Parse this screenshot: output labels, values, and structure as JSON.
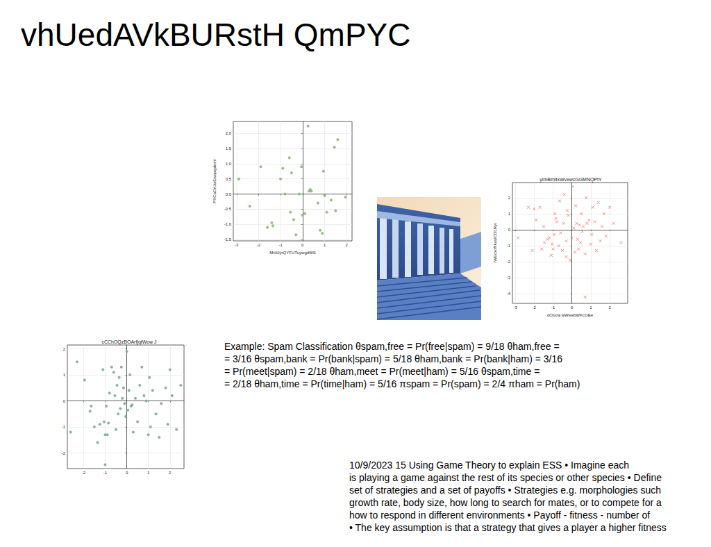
{
  "title": "vhUedAVkBURstH QmPYC",
  "chart_data": [
    {
      "type": "scatter",
      "x_label": "MrHJyrQYFUTuywgdWS",
      "y_label": "PXCaOrUwEwqwgdnml",
      "color": "#86b86f",
      "marker": "o",
      "grid": true,
      "x": [
        -2.9,
        -2.4,
        -1.9,
        -1.6,
        -1.4,
        -1.35,
        -1.0,
        -0.9,
        -0.8,
        -0.6,
        -0.55,
        -0.5,
        -0.4,
        -0.3,
        -0.15,
        -0.05,
        0.0,
        0.1,
        0.25,
        0.3,
        0.35,
        0.4,
        0.7,
        0.8,
        0.9,
        0.95,
        1.0,
        1.1,
        1.3,
        1.45,
        1.6,
        1.5,
        1.95
      ],
      "values": [
        0.5,
        -0.4,
        0.9,
        -1.1,
        -0.95,
        -1.05,
        0.5,
        0.85,
        0.0,
        1.2,
        -0.6,
        0.7,
        -0.85,
        -1.35,
        0.0,
        0.9,
        -0.7,
        -0.65,
        2.25,
        0.1,
        0.15,
        0.1,
        -0.3,
        -1.2,
        -1.3,
        0.75,
        -0.05,
        -0.6,
        -0.2,
        1.55,
        1.8,
        -0.55,
        -0.1
      ],
      "xlim": [
        -3.15,
        2.25
      ],
      "ylim": [
        -1.55,
        2.4
      ],
      "xticks": [
        -3,
        -2,
        -1,
        0,
        1,
        2
      ],
      "yticks": [
        {
          "value": -1.5,
          "label": "-1.5"
        },
        {
          "value": -1,
          "label": "-1.0"
        },
        {
          "value": -0.5,
          "label": "-0.5"
        },
        {
          "value": 0,
          "label": "0.0"
        },
        {
          "value": 0.5,
          "label": "0.5"
        },
        {
          "value": 1,
          "label": "1.0"
        },
        {
          "value": 1.5,
          "label": "1.5"
        },
        {
          "value": 2,
          "label": "2.0"
        }
      ]
    },
    {
      "type": "scatter",
      "title": "yImBmitxWvxwcGGMNQPtY",
      "x_label": "dOGza wWwsbWKcOEe",
      "y_label": "rWEcxnNkoyICDLRyt",
      "color": "#e8786f",
      "marker": "x",
      "grid": true,
      "x": [
        -2.85,
        -2.3,
        -2.1,
        -2.0,
        -1.9,
        -1.7,
        -1.6,
        -1.5,
        -1.45,
        -1.3,
        -1.2,
        -1.1,
        -1.05,
        -1.0,
        -0.95,
        -0.9,
        -0.85,
        -0.8,
        -0.7,
        -0.65,
        -0.6,
        -0.5,
        -0.45,
        -0.4,
        -0.3,
        -0.25,
        -0.2,
        -0.1,
        0.0,
        0.05,
        0.1,
        0.15,
        0.2,
        0.25,
        0.3,
        0.35,
        0.4,
        0.45,
        0.5,
        0.55,
        0.6,
        0.7,
        0.75,
        0.8,
        0.9,
        1.0,
        1.05,
        1.1,
        1.2,
        1.3,
        1.4,
        1.5,
        1.6,
        1.7,
        1.8,
        2.0,
        2.2,
        2.6,
        0.7,
        -0.3
      ],
      "values": [
        -0.5,
        1.4,
        -1.3,
        1.3,
        0.6,
        1.4,
        -1.2,
        0.2,
        -0.8,
        -0.6,
        -0.5,
        -1.6,
        -0.9,
        -1.2,
        -0.3,
        1.0,
        0.7,
        0.5,
        -1.0,
        1.8,
        -0.2,
        -1.3,
        0.4,
        2.2,
        -0.7,
        1.2,
        0.9,
        -1.9,
        -0.5,
        2.7,
        0.1,
        -1.4,
        1.5,
        0.4,
        -0.6,
        -1.2,
        0.3,
        -0.8,
        1.0,
        -0.1,
        0.2,
        -1.5,
        2.0,
        0.4,
        0.6,
        -0.9,
        -0.3,
        1.4,
        0.5,
        -1.3,
        1.7,
        -0.7,
        0.2,
        1.0,
        -0.4,
        1.4,
        0.4,
        -0.8,
        -4.2,
        -1.7
      ],
      "xlim": [
        -3.15,
        2.95
      ],
      "ylim": [
        -4.6,
        2.95
      ],
      "xticks": [
        -3,
        -2,
        -1,
        0,
        1,
        2
      ],
      "yticks": [
        -4,
        -3,
        -2,
        -1,
        0,
        1,
        2
      ]
    },
    {
      "type": "scatter",
      "title": "cCChOQzBOArfjqtWow J",
      "color": "#7aa99e",
      "marker": "o",
      "grid": true,
      "x": [
        -2.6,
        -2.3,
        -1.95,
        -1.7,
        -1.65,
        -1.5,
        -1.35,
        -1.25,
        -1.1,
        -1.05,
        -1.0,
        -0.95,
        -0.9,
        -0.85,
        -0.8,
        -0.7,
        -0.6,
        -0.55,
        -0.5,
        -0.45,
        -0.4,
        -0.35,
        -0.3,
        -0.25,
        -0.2,
        -0.15,
        -0.1,
        -0.05,
        0.0,
        0.05,
        0.1,
        0.15,
        0.2,
        0.25,
        0.3,
        0.4,
        0.5,
        0.6,
        0.7,
        0.8,
        0.9,
        1.0,
        1.05,
        1.1,
        1.2,
        1.35,
        1.5,
        1.6,
        1.8,
        1.9,
        2.0,
        2.1,
        2.3,
        2.5,
        -1.0
      ],
      "values": [
        -1.2,
        1.5,
        0.8,
        -0.4,
        -0.2,
        -1.0,
        -1.6,
        -0.9,
        1.2,
        -0.8,
        -2.45,
        -0.2,
        -1.3,
        -0.85,
        0.3,
        1.3,
        1.1,
        0.2,
        -1.1,
        0.6,
        -0.5,
        0.9,
        -0.3,
        1.3,
        0.1,
        0.5,
        -0.1,
        -0.6,
        1.9,
        -0.35,
        0.4,
        1.0,
        -0.2,
        -0.15,
        -1.2,
        0.1,
        -0.8,
        0.6,
        1.3,
        0.2,
        0.0,
        -1.3,
        0.9,
        -1.0,
        0.4,
        -0.5,
        -1.4,
        -0.1,
        0.5,
        -0.9,
        1.2,
        0.2,
        -1.1,
        0.6,
        -1.3
      ],
      "xlim": [
        -2.75,
        2.65
      ],
      "ylim": [
        -2.6,
        2.15
      ],
      "xticks": [
        -2,
        -1,
        0,
        1,
        2
      ],
      "yticks": [
        -2,
        -1,
        0,
        1,
        2
      ]
    }
  ],
  "text_blocks": [
    [
      "Example: Spam Classification θspam,free = Pr(free|spam) = 9/18 θham,free =",
      "= 3/16 θspam,bank = Pr(bank|spam) = 5/18 θham,bank = Pr(bank|ham) = 3/16",
      "= Pr(meet|spam) = 2/18 θham,meet = Pr(meet|ham) = 5/16 θspam,time =",
      "= 2/18 θham,time = Pr(time|ham) = 5/16 πspam = Pr(spam) = 2/4 πham = Pr(ham)"
    ],
    [
      "10/9/2023 15 Using Game Theory to explain ESS • Imagine each",
      "is playing a game against the rest of its species or other species • Define",
      "set of strategies and a set of payoffs • Strategies e.g. morphologies such",
      "growth rate, body size, how long to search for mates, or to compete for a",
      "how to respond in different environments • Payoff - fitness - number of",
      "• The key assumption is that a strategy that gives a player a higher fitness"
    ]
  ]
}
